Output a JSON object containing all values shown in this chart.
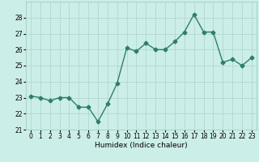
{
  "x": [
    0,
    1,
    2,
    3,
    4,
    5,
    6,
    7,
    8,
    9,
    10,
    11,
    12,
    13,
    14,
    15,
    16,
    17,
    18,
    19,
    20,
    21,
    22,
    23
  ],
  "y": [
    23.1,
    23.0,
    22.8,
    23.0,
    23.0,
    22.4,
    22.4,
    21.5,
    22.6,
    23.9,
    26.1,
    25.9,
    26.4,
    26.0,
    26.0,
    26.5,
    27.1,
    28.2,
    27.1,
    27.1,
    25.2,
    25.4,
    25.0,
    25.5
  ],
  "line_color": "#2e7d6e",
  "marker": "D",
  "markersize": 2.5,
  "linewidth": 1.0,
  "bg_color": "#cceee8",
  "grid_color": "#aad4cc",
  "xlabel": "Humidex (Indice chaleur)",
  "ylim": [
    21,
    29
  ],
  "xlim": [
    -0.5,
    23.5
  ],
  "yticks": [
    21,
    22,
    23,
    24,
    25,
    26,
    27,
    28
  ],
  "xticks": [
    0,
    1,
    2,
    3,
    4,
    5,
    6,
    7,
    8,
    9,
    10,
    11,
    12,
    13,
    14,
    15,
    16,
    17,
    18,
    19,
    20,
    21,
    22,
    23
  ],
  "xlabel_fontsize": 6.5,
  "tick_fontsize": 5.5
}
